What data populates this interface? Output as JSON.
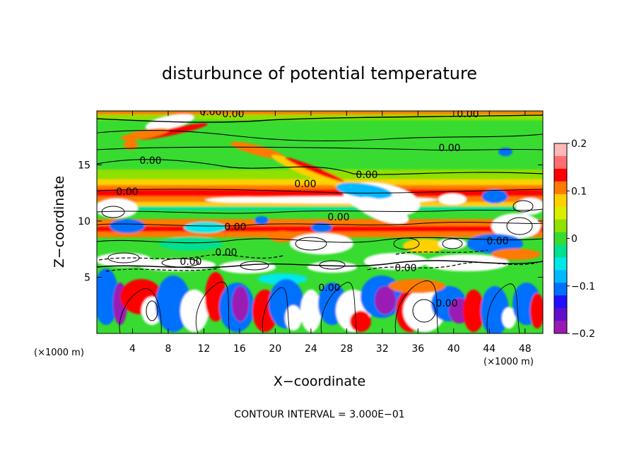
{
  "chart_data": {
    "type": "heatmap",
    "title": "disturbunce of potential temperature",
    "xlabel": "X−coordinate",
    "ylabel": "Z−coordinate",
    "x_unit": "(×1000 m)",
    "x_unit_right": "(×1000 m)",
    "xlim": [
      0,
      50
    ],
    "ylim": [
      0,
      19.8
    ],
    "x_ticks": [
      4,
      8,
      12,
      16,
      20,
      24,
      28,
      32,
      36,
      40,
      44,
      48
    ],
    "y_ticks": [
      5,
      10,
      15
    ],
    "colorbar": {
      "range": [
        -0.2,
        0.2
      ],
      "ticks": [
        "0.2",
        "0.1",
        "0",
        "−0.1",
        "−0.2"
      ],
      "colors": [
        "#ffb8b8",
        "#ff6e6e",
        "#ff0000",
        "#ff7a00",
        "#ffd000",
        "#d8f000",
        "#90e000",
        "#38dc30",
        "#00e090",
        "#00e8e8",
        "#00b8ff",
        "#0070ff",
        "#2010ff",
        "#6010c8",
        "#9a1ab4"
      ]
    },
    "contour_interval": "CONTOUR INTERVAL = 3.000E−01",
    "contour_labels": [
      "0.00",
      "0.00",
      "0.00",
      "0.00",
      "0.00",
      "0.00",
      "0.00",
      "0.00",
      "0.00",
      "0.00",
      "0.00",
      "0.00",
      "0.00",
      "0.00",
      "0.00",
      "0.00"
    ],
    "grid": false
  }
}
